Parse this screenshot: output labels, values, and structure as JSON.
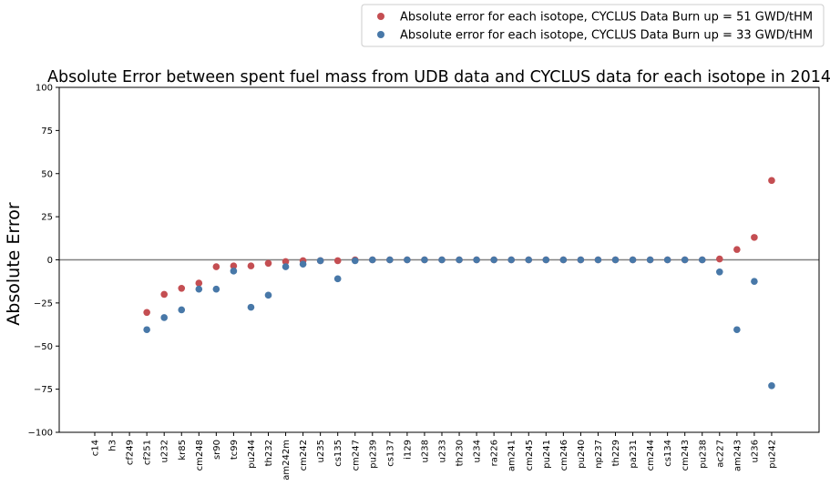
{
  "chart_data": {
    "type": "scatter",
    "title": "Absolute Error between spent fuel mass from UDB data and CYCLUS data for each isotope in 2014",
    "xlabel": "",
    "ylabel": "Absolute Error",
    "ylim": [
      -100,
      100
    ],
    "yticks": [
      "100",
      "75",
      "50",
      "25",
      "0",
      "−25",
      "−50",
      "−75",
      "−100"
    ],
    "grid": false,
    "legend_placement": "top-right",
    "zero_line": true,
    "categories": [
      "c14",
      "h3",
      "cf249",
      "cf251",
      "u232",
      "kr85",
      "cm248",
      "sr90",
      "tc99",
      "pu244",
      "th232",
      "am242m",
      "cm242",
      "u235",
      "cs135",
      "cm247",
      "pu239",
      "cs137",
      "i129",
      "u238",
      "u233",
      "th230",
      "u234",
      "ra226",
      "am241",
      "cm245",
      "pu241",
      "cm246",
      "pu240",
      "np237",
      "th229",
      "pa231",
      "cm244",
      "cs134",
      "cm243",
      "pu238",
      "ac227",
      "am243",
      "u236",
      "pu242"
    ],
    "series": [
      {
        "name": "Absolute error for each isotope, CYCLUS Data Burn up = 51 GWD/tHM",
        "color": "#c44e52",
        "values": [
          null,
          null,
          null,
          -30.5,
          -20,
          -16.5,
          -13.5,
          -4,
          -3.5,
          -3.5,
          -2,
          -1,
          -0.5,
          -0.5,
          -0.5,
          0,
          0,
          0,
          0,
          0,
          0,
          0,
          0,
          0,
          0,
          0,
          0,
          0,
          0,
          0,
          0,
          0,
          0,
          0,
          0,
          0,
          0.5,
          6,
          13,
          46
        ]
      },
      {
        "name": "Absolute error for each isotope, CYCLUS Data Burn up = 33 GWD/tHM",
        "color": "#4878a8",
        "values": [
          null,
          null,
          null,
          -40.5,
          -33.5,
          -29,
          -17,
          -17,
          -6.5,
          -27.5,
          -20.5,
          -4,
          -2.5,
          -0.5,
          -11,
          -0.5,
          0,
          0,
          0,
          0,
          0,
          0,
          0,
          0,
          0,
          0,
          0,
          0,
          0,
          0,
          0,
          0,
          0,
          0,
          0,
          0,
          -7,
          -40.5,
          -12.5,
          -73
        ]
      }
    ]
  }
}
